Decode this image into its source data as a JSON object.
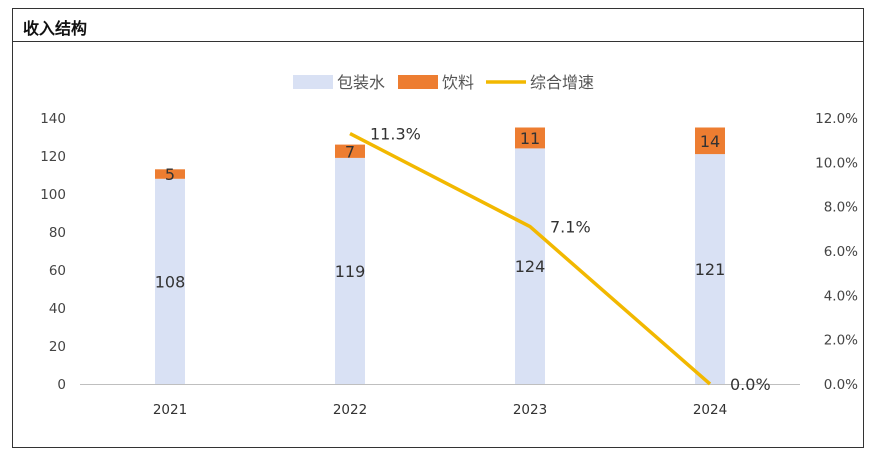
{
  "title": "收入结构",
  "colors": {
    "bottle": "#d9e1f4",
    "drink": "#ed7d31",
    "growth": "#f2b800",
    "axis": "#bfbfbf"
  },
  "chart_data": {
    "type": "bar",
    "categories": [
      "2021",
      "2022",
      "2023",
      "2024"
    ],
    "series": [
      {
        "name": "包装水",
        "kind": "bar",
        "values": [
          108,
          119,
          124,
          121
        ],
        "labels": [
          "108",
          "119",
          "124",
          "121"
        ]
      },
      {
        "name": "饮料",
        "kind": "bar",
        "values": [
          5,
          7,
          11,
          14
        ],
        "labels": [
          "5",
          "7",
          "11",
          "14"
        ]
      },
      {
        "name": "综合增速",
        "kind": "line",
        "axis": "right",
        "values": [
          null,
          11.3,
          7.1,
          0.0
        ],
        "labels": [
          "",
          "11.3%",
          "7.1%",
          "0.0%"
        ]
      }
    ],
    "stacked": true,
    "ylim": [
      0,
      140
    ],
    "yticks": [
      "0",
      "20",
      "40",
      "60",
      "80",
      "100",
      "120",
      "140"
    ],
    "y2lim": [
      0,
      12
    ],
    "y2ticks": [
      "0.0%",
      "2.0%",
      "4.0%",
      "6.0%",
      "8.0%",
      "10.0%",
      "12.0%"
    ],
    "legend": "top",
    "grid": false
  }
}
